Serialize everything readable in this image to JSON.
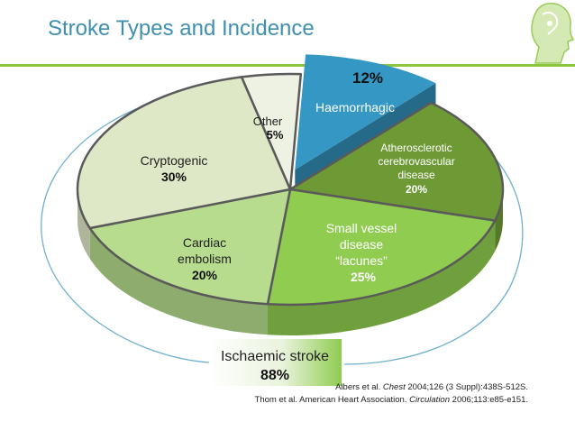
{
  "slide": {
    "title": "Stroke Types and Incidence"
  },
  "colors": {
    "title": "#3f8fb0",
    "rule": "#8cc63f",
    "haemorrhagic": "#3597c4",
    "atherosclerotic": "#6e9a35",
    "small_vessel": "#8fcc50",
    "cardiac": "#b7dc8e",
    "cryptogenic": "#dfe8c6",
    "other": "#eef2e2"
  },
  "chart_data": {
    "type": "pie",
    "slices": [
      {
        "label": "Haemorrhagic",
        "value": 12,
        "value_label": "12%"
      },
      {
        "label": "Atherosclerotic cerebrovascular disease",
        "lines": [
          "Atherosclerotic",
          "cerebrovascular",
          "disease"
        ],
        "value": 20,
        "value_label": "20%"
      },
      {
        "label": "Small vessel disease “lacunes”",
        "lines": [
          "Small vessel",
          "disease",
          "“lacunes”"
        ],
        "value": 25,
        "value_label": "25%"
      },
      {
        "label": "Cardiac embolism",
        "lines": [
          "Cardiac",
          "embolism"
        ],
        "value": 20,
        "value_label": "20%"
      },
      {
        "label": "Cryptogenic",
        "lines": [
          "Cryptogenic"
        ],
        "value": 30,
        "value_label": "30%"
      },
      {
        "label": "Other",
        "lines": [
          "Other"
        ],
        "value": 5,
        "value_label": "5%"
      }
    ],
    "group": {
      "label": "Ischaemic stroke",
      "value": 88,
      "value_label": "88%"
    }
  },
  "references": {
    "ref1_pre": "Albers et al. ",
    "ref1_journal": "Chest",
    "ref1_post": " 2004;126 (3 Suppl):438S-512S.",
    "ref2_pre": "Thom et al. American Heart Association. ",
    "ref2_journal": "Circulation",
    "ref2_post": " 2006;113:e85-e151."
  },
  "icons": {
    "logo": "human-head-icon"
  }
}
